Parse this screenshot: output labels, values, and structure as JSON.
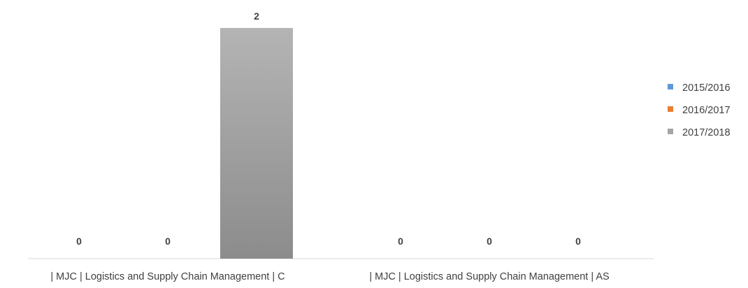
{
  "chart_data": {
    "type": "bar",
    "categories": [
      "| MJC | Logistics and Supply Chain Management | C",
      "| MJC | Logistics and Supply Chain Management | AS"
    ],
    "series": [
      {
        "name": "2015/2016",
        "values": [
          0,
          0
        ],
        "color": "#5b9bd5"
      },
      {
        "name": "2016/2017",
        "values": [
          0,
          0
        ],
        "color": "#ed7d31"
      },
      {
        "name": "2017/2018",
        "values": [
          2,
          0
        ],
        "color": "#a5a5a5"
      }
    ],
    "data_labels": true,
    "ylim": [
      0,
      2
    ],
    "grid": false,
    "legend_position": "right"
  }
}
